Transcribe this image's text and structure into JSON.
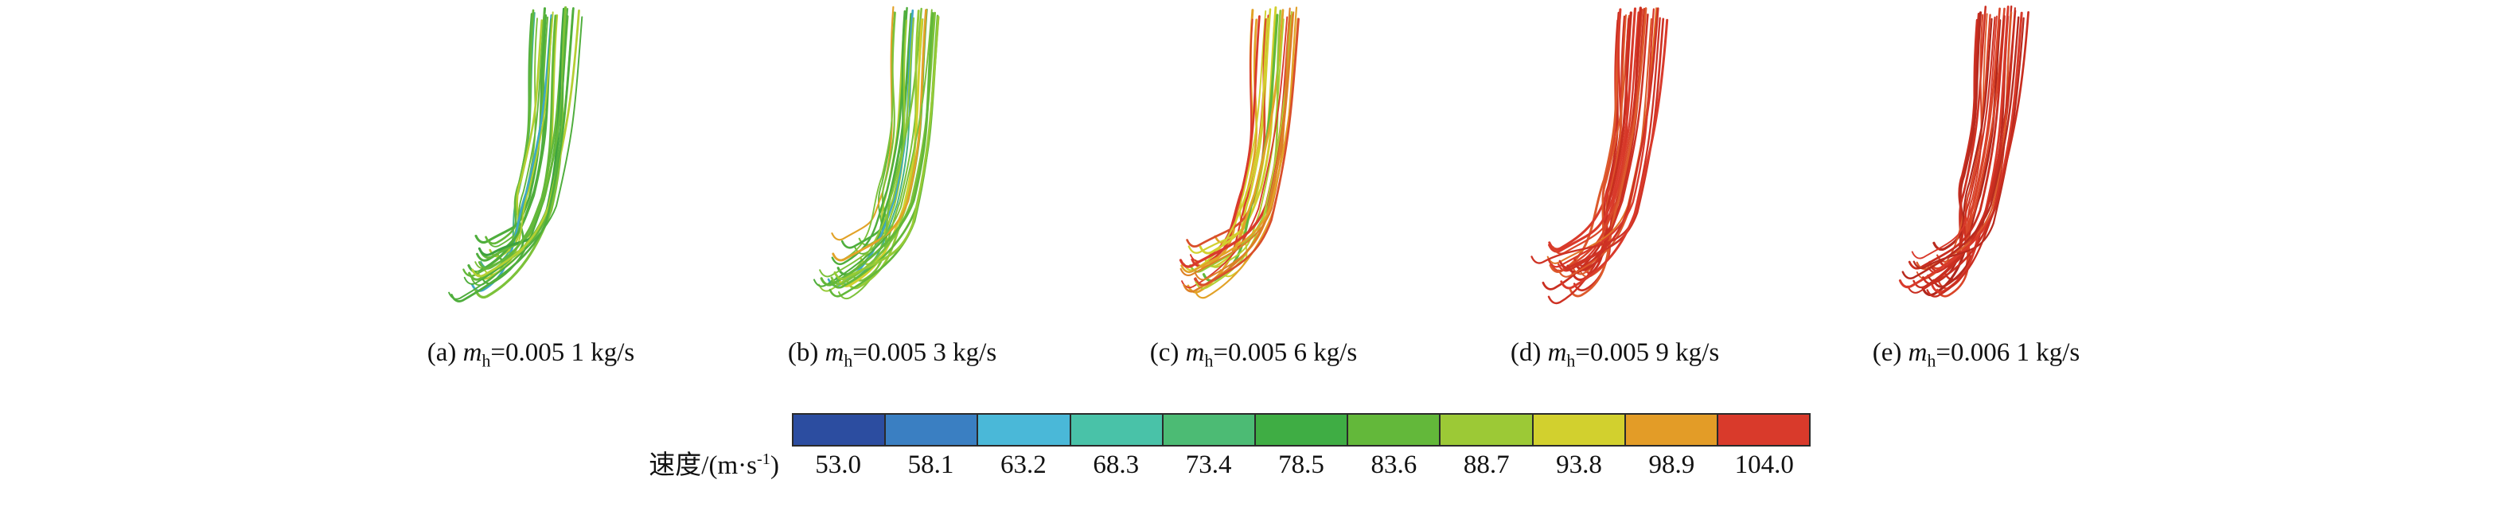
{
  "chart_data": {
    "type": "streamline",
    "description": "Five 3D streamline plots of the flow field at different hot-side mass flow rates, lines colored by velocity magnitude; shared discrete colorbar below.",
    "panels": [
      {
        "caption_index": "(a) ",
        "caption_var": "m",
        "caption_sub": "h",
        "caption_rest": "=0.005 1 kg/s",
        "caption_full": "(a) m_h=0.005 1 kg/s",
        "mass_flow_kg_per_s": 0.0051,
        "dominant_velocity": "green (≈73–89 m/s)",
        "palette": [
          "#4fae3d",
          "#63b83a",
          "#4fae3d",
          "#7cc23a",
          "#96ca37",
          "#3da23f",
          "#b4cf33",
          "#63b83a",
          "#45b289",
          "#d2d02e",
          "#3fa7c4",
          "#7cc23a"
        ]
      },
      {
        "caption_index": "(b) ",
        "caption_var": "m",
        "caption_sub": "h",
        "caption_rest": "=0.005 3 kg/s",
        "caption_full": "(b) m_h=0.005 3 kg/s",
        "mass_flow_kg_per_s": 0.0053,
        "dominant_velocity": "green-yellow (≈78–94 m/s)",
        "palette": [
          "#63b83a",
          "#7cc23a",
          "#96ca37",
          "#4fae3d",
          "#b4cf33",
          "#d2d02e",
          "#63b83a",
          "#45b289",
          "#e2a228",
          "#7cc23a",
          "#3fa7c4",
          "#96ca37"
        ]
      },
      {
        "caption_index": "(c) ",
        "caption_var": "m",
        "caption_sub": "h",
        "caption_rest": "=0.005 6 kg/s",
        "caption_full": "(c) m_h=0.005 6 kg/s",
        "mass_flow_kg_per_s": 0.0056,
        "dominant_velocity": "yellow-orange-red mix (≈84–104 m/s)",
        "palette": [
          "#d2d02e",
          "#e2a228",
          "#dd8026",
          "#d94f2b",
          "#b4cf33",
          "#96ca37",
          "#d93a2b",
          "#e2a228",
          "#63b83a",
          "#d2d02e",
          "#45b2a0",
          "#d94f2b"
        ]
      },
      {
        "caption_index": "(d) ",
        "caption_var": "m",
        "caption_sub": "h",
        "caption_rest": "=0.005 9 kg/s",
        "caption_full": "(d) m_h=0.005 9 kg/s",
        "mass_flow_kg_per_s": 0.0059,
        "dominant_velocity": "red (≈94–104 m/s)",
        "palette": [
          "#d93a2b",
          "#ce3224",
          "#dd5a2c",
          "#c92e20",
          "#e07428",
          "#d93a2b",
          "#d94529",
          "#b82a1e",
          "#d93a2b",
          "#e2a228",
          "#ce3224",
          "#dd5a2c"
        ]
      },
      {
        "caption_index": "(e) ",
        "caption_var": "m",
        "caption_sub": "h",
        "caption_rest": "=0.006 1 kg/s",
        "caption_full": "(e) m_h=0.006 1 kg/s",
        "mass_flow_kg_per_s": 0.0061,
        "dominant_velocity": "deep red (≈99–104 m/s)",
        "palette": [
          "#c92e20",
          "#d93a2b",
          "#b82a1e",
          "#ce3224",
          "#d94529",
          "#c92e20",
          "#dd5a2c",
          "#b0261c",
          "#d93a2b",
          "#ce3224",
          "#c92e20",
          "#d94529"
        ]
      }
    ],
    "colorbar": {
      "label_prefix": "速度/(m·s",
      "label_sup": "-1",
      "label_suffix": ")",
      "label_full": "速度/(m·s⁻¹)",
      "quantity": "速度",
      "unit": "m·s⁻¹",
      "ticks": [
        "53.0",
        "58.1",
        "63.2",
        "68.3",
        "73.4",
        "78.5",
        "83.6",
        "88.7",
        "93.8",
        "98.9",
        "104.0"
      ],
      "tick_values": [
        53.0,
        58.1,
        63.2,
        68.3,
        73.4,
        78.5,
        83.6,
        88.7,
        93.8,
        98.9,
        104.0
      ],
      "range": [
        53.0,
        104.0
      ],
      "segment_colors": [
        "#2c4da0",
        "#3a7fc2",
        "#4ab8d8",
        "#49c2a8",
        "#4cbb74",
        "#3fad44",
        "#63b83a",
        "#9cc936",
        "#d2d02e",
        "#e39c27",
        "#d93a2b"
      ]
    }
  }
}
